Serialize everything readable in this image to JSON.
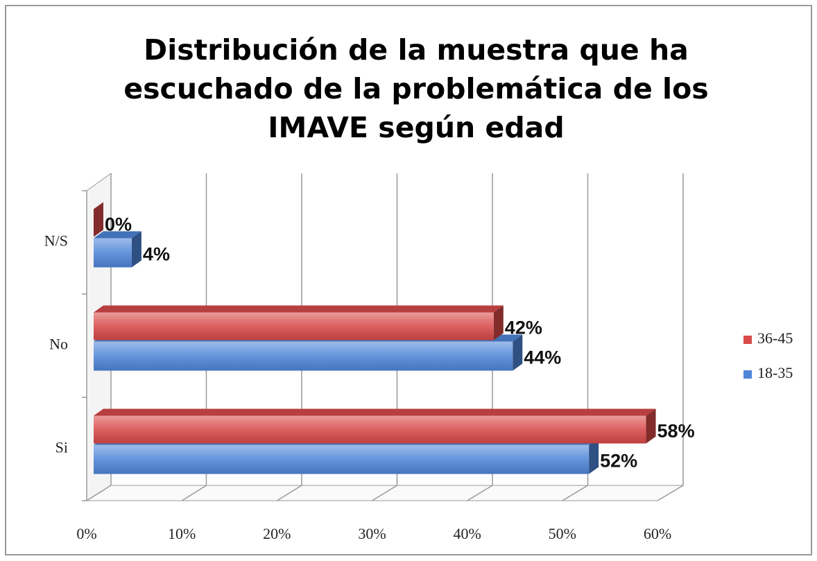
{
  "chart_data": {
    "type": "bar",
    "orientation": "horizontal",
    "title": [
      "Distribución de la muestra que ha",
      "escuchado de la problemática de los",
      "IMAVE según edad"
    ],
    "categories": [
      "Si",
      "No",
      "N/S"
    ],
    "series": [
      {
        "name": "18-35",
        "color": "#4f86d9",
        "values": [
          52,
          44,
          4
        ],
        "value_labels": [
          "52%",
          "44%",
          "4%"
        ]
      },
      {
        "name": "36-45",
        "color": "#d94a4a",
        "values": [
          58,
          42,
          0
        ],
        "value_labels": [
          "58%",
          "42%",
          "0%"
        ]
      }
    ],
    "xlim": [
      0,
      60
    ],
    "xticks": [
      {
        "value": 0,
        "label": "0%"
      },
      {
        "value": 10,
        "label": "10%"
      },
      {
        "value": 20,
        "label": "20%"
      },
      {
        "value": 30,
        "label": "30%"
      },
      {
        "value": 40,
        "label": "40%"
      },
      {
        "value": 50,
        "label": "50%"
      },
      {
        "value": 60,
        "label": "60%"
      }
    ],
    "grid": true,
    "legend": "right"
  }
}
